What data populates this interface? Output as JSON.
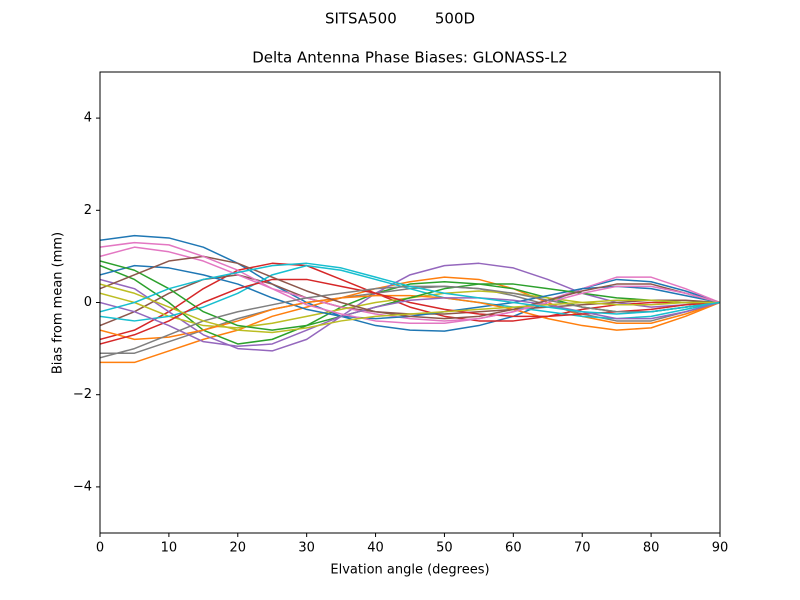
{
  "chart_data": {
    "type": "line",
    "suptitle": "SITSA500        500D",
    "title": "Delta Antenna Phase Biases: GLONASS-L2",
    "xlabel": "Elvation angle (degrees)",
    "ylabel": "Bias from mean (mm)",
    "x": [
      0,
      5,
      10,
      15,
      20,
      25,
      30,
      35,
      40,
      45,
      50,
      55,
      60,
      65,
      70,
      75,
      80,
      85,
      90
    ],
    "xlim": [
      0,
      90
    ],
    "xticks": [
      0,
      10,
      20,
      30,
      40,
      50,
      60,
      70,
      80,
      90
    ],
    "ylim": [
      -5,
      5
    ],
    "yticks": [
      {
        "value": -4,
        "label": "−4"
      },
      {
        "value": -2,
        "label": "−2"
      },
      0,
      2,
      4
    ],
    "series": [
      {
        "color": "#1f77b4",
        "values": [
          1.35,
          1.45,
          1.4,
          1.2,
          0.85,
          0.4,
          0.0,
          -0.3,
          -0.5,
          -0.6,
          -0.62,
          -0.5,
          -0.3,
          0.0,
          0.3,
          0.5,
          0.45,
          0.25,
          0
        ]
      },
      {
        "color": "#ff7f0e",
        "values": [
          -1.3,
          -1.3,
          -1.05,
          -0.8,
          -0.6,
          -0.3,
          -0.1,
          0.1,
          0.3,
          0.45,
          0.55,
          0.5,
          0.3,
          0.0,
          -0.3,
          -0.45,
          -0.45,
          -0.25,
          0
        ]
      },
      {
        "color": "#2ca02c",
        "values": [
          0.8,
          0.5,
          0.0,
          -0.6,
          -0.9,
          -0.8,
          -0.5,
          -0.1,
          0.2,
          0.4,
          0.45,
          0.4,
          0.3,
          0.1,
          -0.1,
          -0.2,
          -0.2,
          -0.1,
          0
        ]
      },
      {
        "color": "#d62728",
        "values": [
          -0.8,
          -0.6,
          -0.2,
          0.3,
          0.7,
          0.85,
          0.8,
          0.5,
          0.2,
          -0.1,
          -0.3,
          -0.4,
          -0.4,
          -0.3,
          -0.15,
          -0.05,
          0.0,
          0.0,
          0
        ]
      },
      {
        "color": "#9467bd",
        "values": [
          0.5,
          0.3,
          -0.2,
          -0.7,
          -1.0,
          -1.05,
          -0.8,
          -0.3,
          0.2,
          0.6,
          0.8,
          0.85,
          0.75,
          0.5,
          0.2,
          0.0,
          -0.1,
          -0.05,
          0
        ]
      },
      {
        "color": "#8c564b",
        "values": [
          -0.5,
          -0.2,
          0.2,
          0.5,
          0.6,
          0.4,
          0.1,
          -0.1,
          -0.2,
          -0.25,
          -0.25,
          -0.2,
          -0.15,
          -0.1,
          -0.05,
          0.0,
          0.05,
          0.05,
          0
        ]
      },
      {
        "color": "#e377c2",
        "values": [
          1.0,
          1.2,
          1.1,
          0.9,
          0.6,
          0.3,
          0.1,
          -0.1,
          -0.25,
          -0.35,
          -0.4,
          -0.35,
          -0.2,
          0.05,
          0.3,
          0.55,
          0.55,
          0.3,
          0
        ]
      },
      {
        "color": "#7f7f7f",
        "values": [
          -1.1,
          -1.1,
          -0.85,
          -0.6,
          -0.35,
          -0.15,
          0.0,
          0.1,
          0.2,
          0.3,
          0.35,
          0.3,
          0.15,
          -0.05,
          -0.25,
          -0.4,
          -0.4,
          -0.2,
          0
        ]
      },
      {
        "color": "#bcbd22",
        "values": [
          0.2,
          0.0,
          -0.3,
          -0.5,
          -0.55,
          -0.45,
          -0.3,
          -0.15,
          0.0,
          0.1,
          0.2,
          0.25,
          0.2,
          0.1,
          0.0,
          -0.05,
          -0.05,
          0.0,
          0
        ]
      },
      {
        "color": "#17becf",
        "values": [
          -0.3,
          -0.4,
          -0.3,
          -0.1,
          0.2,
          0.6,
          0.8,
          0.7,
          0.5,
          0.3,
          0.1,
          0.0,
          -0.1,
          -0.2,
          -0.3,
          -0.35,
          -0.3,
          -0.15,
          0
        ]
      },
      {
        "color": "#1f77b4",
        "values": [
          0.6,
          0.8,
          0.75,
          0.6,
          0.4,
          0.1,
          -0.15,
          -0.3,
          -0.35,
          -0.3,
          -0.2,
          -0.1,
          0.0,
          0.15,
          0.3,
          0.35,
          0.3,
          0.15,
          0
        ]
      },
      {
        "color": "#ff7f0e",
        "values": [
          -0.6,
          -0.8,
          -0.75,
          -0.6,
          -0.4,
          -0.15,
          0.0,
          0.1,
          0.15,
          0.15,
          0.1,
          0.0,
          -0.15,
          -0.35,
          -0.5,
          -0.6,
          -0.55,
          -0.3,
          0
        ]
      },
      {
        "color": "#2ca02c",
        "values": [
          0.9,
          0.7,
          0.3,
          -0.2,
          -0.5,
          -0.6,
          -0.5,
          -0.3,
          -0.1,
          0.1,
          0.3,
          0.4,
          0.4,
          0.3,
          0.2,
          0.1,
          0.05,
          0.0,
          0
        ]
      },
      {
        "color": "#d62728",
        "values": [
          -0.9,
          -0.7,
          -0.4,
          0.0,
          0.3,
          0.5,
          0.5,
          0.35,
          0.2,
          0.0,
          -0.15,
          -0.25,
          -0.3,
          -0.3,
          -0.25,
          -0.2,
          -0.15,
          -0.05,
          0
        ]
      },
      {
        "color": "#9467bd",
        "values": [
          0.0,
          -0.2,
          -0.5,
          -0.85,
          -0.95,
          -0.9,
          -0.6,
          -0.3,
          -0.1,
          0.05,
          0.1,
          0.1,
          0.05,
          -0.05,
          -0.2,
          -0.35,
          -0.35,
          -0.2,
          0
        ]
      },
      {
        "color": "#8c564b",
        "values": [
          0.3,
          0.6,
          0.9,
          1.0,
          0.85,
          0.55,
          0.25,
          0.0,
          -0.2,
          -0.3,
          -0.35,
          -0.3,
          -0.15,
          0.05,
          0.25,
          0.4,
          0.4,
          0.2,
          0
        ]
      },
      {
        "color": "#e377c2",
        "values": [
          1.2,
          1.3,
          1.25,
          1.0,
          0.7,
          0.3,
          -0.05,
          -0.25,
          -0.4,
          -0.45,
          -0.45,
          -0.35,
          -0.2,
          0.0,
          0.2,
          0.35,
          0.35,
          0.2,
          0
        ]
      },
      {
        "color": "#7f7f7f",
        "values": [
          -1.2,
          -1.0,
          -0.7,
          -0.4,
          -0.2,
          -0.05,
          0.1,
          0.2,
          0.3,
          0.35,
          0.35,
          0.3,
          0.2,
          0.05,
          -0.1,
          -0.2,
          -0.2,
          -0.1,
          0
        ]
      },
      {
        "color": "#bcbd22",
        "values": [
          0.4,
          0.2,
          -0.1,
          -0.4,
          -0.6,
          -0.65,
          -0.55,
          -0.4,
          -0.3,
          -0.25,
          -0.2,
          -0.15,
          -0.1,
          -0.05,
          0.0,
          0.05,
          0.05,
          0.0,
          0
        ]
      },
      {
        "color": "#17becf",
        "values": [
          -0.2,
          0.0,
          0.3,
          0.5,
          0.65,
          0.8,
          0.85,
          0.75,
          0.55,
          0.35,
          0.2,
          0.1,
          0.0,
          -0.1,
          -0.2,
          -0.25,
          -0.2,
          -0.1,
          0
        ]
      }
    ]
  }
}
